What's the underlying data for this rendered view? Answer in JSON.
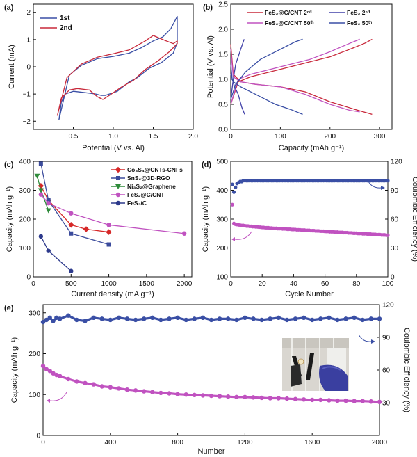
{
  "chart_data": [
    {
      "id": "a",
      "panel_label": "(a)",
      "type": "line",
      "xlabel": "Potential (V vs. Al)",
      "ylabel": "Current (mA)",
      "xlim": [
        0,
        2
      ],
      "ylim": [
        -2.3,
        2.3
      ],
      "xticks": [
        0.5,
        1.0,
        1.5,
        2.0
      ],
      "xticklabels": [
        "0.5",
        "1.0",
        "1.5",
        "2.0"
      ],
      "yticks": [
        -2,
        -1,
        0,
        1,
        2
      ],
      "yticklabels": [
        "−2",
        "−1",
        "0",
        "1",
        "2"
      ],
      "legend": "top-left",
      "series": [
        {
          "name": "1st",
          "color": "#3a4fa5",
          "x": [
            0.32,
            0.45,
            0.6,
            0.8,
            1.0,
            1.2,
            1.35,
            1.5,
            1.62,
            1.72,
            1.8,
            1.8,
            1.75,
            1.6,
            1.45,
            1.3,
            1.2,
            1.05,
            0.9,
            0.85,
            0.78,
            0.65,
            0.5,
            0.4,
            0.35,
            0.32
          ],
          "y": [
            -1.95,
            -0.3,
            0.05,
            0.3,
            0.38,
            0.5,
            0.7,
            0.95,
            1.1,
            1.4,
            1.85,
            0.9,
            0.5,
            0.15,
            -0.05,
            -0.4,
            -0.55,
            -0.9,
            -1.05,
            -1.05,
            -1.0,
            -0.95,
            -0.9,
            -1.0,
            -1.3,
            -1.95
          ]
        },
        {
          "name": "2nd",
          "color": "#c8283a",
          "x": [
            0.3,
            0.42,
            0.6,
            0.8,
            1.0,
            1.2,
            1.4,
            1.5,
            1.62,
            1.75,
            1.8,
            1.8,
            1.7,
            1.55,
            1.4,
            1.25,
            1.1,
            0.95,
            0.87,
            0.8,
            0.7,
            0.55,
            0.45,
            0.35,
            0.3
          ],
          "y": [
            -1.8,
            -0.4,
            0.1,
            0.35,
            0.48,
            0.62,
            0.95,
            1.15,
            1.0,
            0.85,
            0.95,
            0.85,
            0.55,
            0.2,
            -0.1,
            -0.5,
            -0.75,
            -1.05,
            -1.2,
            -1.1,
            -0.85,
            -0.8,
            -0.85,
            -1.15,
            -1.8
          ]
        }
      ]
    },
    {
      "id": "b",
      "panel_label": "(b)",
      "type": "line",
      "xlabel": "Capacity (mAh g⁻¹)",
      "ylabel": "Potential (V vs. Al)",
      "xlim": [
        0,
        325
      ],
      "ylim": [
        0,
        2.5
      ],
      "xticks": [
        0,
        100,
        200,
        300
      ],
      "xticklabels": [
        "0",
        "100",
        "200",
        "300"
      ],
      "yticks": [
        0,
        0.5,
        1.0,
        1.5,
        2.0,
        2.5
      ],
      "yticklabels": [
        "0.0",
        "0.5",
        "1.0",
        "1.5",
        "2.0",
        "2.5"
      ],
      "legend": "top",
      "series": [
        {
          "name": "FeS₂@C/CNT 2ⁿᵈ",
          "color": "#c8283a",
          "charge": {
            "x": [
              0,
              15,
              40,
              80,
              120,
              160,
              200,
              240,
              270,
              285
            ],
            "y": [
              0.5,
              0.95,
              1.05,
              1.15,
              1.25,
              1.35,
              1.45,
              1.6,
              1.72,
              1.8
            ]
          },
          "discharge": {
            "x": [
              0,
              5,
              20,
              50,
              100,
              150,
              200,
              250,
              285
            ],
            "y": [
              1.7,
              1.1,
              0.95,
              0.9,
              0.85,
              0.75,
              0.55,
              0.4,
              0.3
            ]
          }
        },
        {
          "name": "FeS₂@C/CNT 50ᵗʰ",
          "color": "#c052c0",
          "charge": {
            "x": [
              0,
              15,
              40,
              80,
              120,
              160,
              200,
              240,
              260
            ],
            "y": [
              0.5,
              1.0,
              1.1,
              1.2,
              1.3,
              1.4,
              1.55,
              1.72,
              1.8
            ]
          },
          "discharge": {
            "x": [
              0,
              5,
              20,
              50,
              100,
              150,
              200,
              240,
              260
            ],
            "y": [
              1.6,
              1.05,
              0.95,
              0.9,
              0.85,
              0.7,
              0.5,
              0.38,
              0.35
            ]
          }
        },
        {
          "name": "FeS₂ 2ⁿᵈ",
          "color": "#4040a8",
          "charge": {
            "x": [
              0,
              5,
              10,
              20,
              27
            ],
            "y": [
              0.6,
              1.0,
              1.3,
              1.6,
              1.8
            ]
          },
          "discharge": {
            "x": [
              0,
              3,
              8,
              15,
              22,
              28
            ],
            "y": [
              1.3,
              1.0,
              0.85,
              0.7,
              0.45,
              0.3
            ]
          }
        },
        {
          "name": "FeS₂ 50ᵗʰ",
          "color": "#3a4fa5",
          "charge": {
            "x": [
              0,
              10,
              30,
              60,
              100,
              130,
              145
            ],
            "y": [
              0.6,
              0.9,
              1.15,
              1.4,
              1.6,
              1.75,
              1.8
            ]
          },
          "discharge": {
            "x": [
              0,
              5,
              20,
              50,
              90,
              120,
              145
            ],
            "y": [
              1.1,
              0.95,
              0.85,
              0.7,
              0.5,
              0.4,
              0.3
            ]
          }
        }
      ]
    },
    {
      "id": "c",
      "panel_label": "(c)",
      "type": "line",
      "xlabel": "Current density (mA g⁻¹)",
      "ylabel": "Capacity (mAh g⁻¹)",
      "xlim": [
        0,
        2100
      ],
      "ylim": [
        0,
        400
      ],
      "xticks": [
        0,
        500,
        1000,
        1500,
        2000
      ],
      "xticklabels": [
        "0",
        "500",
        "1000",
        "1500",
        "2000"
      ],
      "yticks": [
        0,
        100,
        200,
        300,
        400
      ],
      "yticklabels": [
        "0",
        "100",
        "200",
        "300",
        "400"
      ],
      "legend": "top-right",
      "series": [
        {
          "name": "Co₃S₄@CNTs-CNFs",
          "color": "#d62828",
          "marker": "diamond",
          "x": [
            100,
            200,
            500,
            700,
            1000
          ],
          "y": [
            315,
            265,
            180,
            165,
            155
          ]
        },
        {
          "name": "SnS₂@3D-RGO",
          "color": "#3b4b9c",
          "marker": "square",
          "x": [
            100,
            200,
            500,
            1000
          ],
          "y": [
            392,
            265,
            150,
            112
          ]
        },
        {
          "name": "Ni₃S₂@Graphene",
          "color": "#2e8b3a",
          "marker": "triangle",
          "x": [
            50,
            100,
            200
          ],
          "y": [
            350,
            300,
            230
          ]
        },
        {
          "name": "FeS₂@C/CNT",
          "color": "#c052c0",
          "marker": "circle",
          "x": [
            100,
            200,
            500,
            1000,
            2000
          ],
          "y": [
            285,
            255,
            220,
            180,
            150
          ]
        },
        {
          "name": "FeS₂/C",
          "color": "#2d3a8c",
          "marker": "circle",
          "x": [
            100,
            200,
            500
          ],
          "y": [
            140,
            90,
            20
          ]
        }
      ]
    },
    {
      "id": "d",
      "panel_label": "(d)",
      "type": "scatter",
      "xlabel": "Cycle Number",
      "ylabel": "Capacity (mAh g⁻¹)",
      "y2label": "Coulombic Efficiency (%)",
      "xlim": [
        0,
        100
      ],
      "ylim": [
        100,
        500
      ],
      "y2lim": [
        0,
        120
      ],
      "xticks": [
        0,
        20,
        40,
        60,
        80,
        100
      ],
      "xticklabels": [
        "0",
        "20",
        "40",
        "60",
        "80",
        "100"
      ],
      "yticks": [
        100,
        200,
        300,
        400,
        500
      ],
      "yticklabels": [
        "100",
        "200",
        "300",
        "400",
        "500"
      ],
      "y2ticks": [
        0,
        30,
        60,
        90,
        120
      ],
      "y2ticklabels": [
        "0",
        "30",
        "60",
        "90",
        "120"
      ],
      "series": [
        {
          "name": "Coulombic efficiency",
          "color": "#3a4fa5",
          "axis": "y2",
          "x_start": 1,
          "x_step": 1,
          "values": [
            96,
            88,
            93,
            97,
            98,
            99,
            99,
            100,
            100,
            100,
            100,
            100,
            100,
            100,
            100,
            100,
            100,
            100,
            100,
            100,
            100,
            100,
            100,
            100,
            100,
            100,
            100,
            100,
            100,
            100,
            100,
            100,
            100,
            100,
            100,
            100,
            100,
            100,
            100,
            100,
            100,
            100,
            100,
            100,
            100,
            100,
            100,
            100,
            100,
            100,
            100,
            100,
            100,
            100,
            100,
            100,
            100,
            100,
            100,
            100,
            100,
            100,
            100,
            100,
            100,
            100,
            100,
            100,
            100,
            100,
            100,
            100,
            100,
            100,
            100,
            100,
            100,
            100,
            100,
            100,
            100,
            100,
            100,
            100,
            100,
            100,
            100,
            100,
            100,
            100,
            100,
            100,
            100,
            100,
            100,
            100,
            100,
            100,
            100,
            100
          ]
        },
        {
          "name": "Capacity",
          "color": "#c052c0",
          "axis": "y",
          "x_start": 1,
          "x_step": 1,
          "values": [
            350,
            285,
            282,
            281,
            280,
            279,
            278,
            278,
            277,
            276,
            276,
            275,
            275,
            274,
            274,
            273,
            273,
            272,
            272,
            271,
            271,
            270,
            270,
            270,
            269,
            269,
            268,
            268,
            268,
            267,
            267,
            267,
            266,
            266,
            266,
            265,
            265,
            265,
            264,
            264,
            264,
            263,
            263,
            263,
            262,
            262,
            262,
            261,
            261,
            261,
            260,
            260,
            260,
            259,
            259,
            259,
            258,
            258,
            258,
            257,
            257,
            257,
            256,
            256,
            256,
            255,
            255,
            255,
            254,
            254,
            254,
            253,
            253,
            253,
            252,
            252,
            252,
            251,
            251,
            251,
            250,
            250,
            250,
            249,
            249,
            249,
            248,
            248,
            248,
            247,
            247,
            247,
            246,
            246,
            246,
            245,
            245,
            245,
            244,
            244
          ]
        }
      ]
    },
    {
      "id": "e",
      "panel_label": "(e)",
      "type": "scatter",
      "xlabel": "Number",
      "ylabel": "Capacity (mAh g⁻¹)",
      "y2label": "Coulombic Efficiency (%)",
      "xlim": [
        0,
        2000
      ],
      "ylim": [
        0,
        320
      ],
      "y2lim": [
        0,
        120
      ],
      "xticks": [
        0,
        400,
        800,
        1200,
        1600,
        2000
      ],
      "xticklabels": [
        "0",
        "400",
        "800",
        "1200",
        "1600",
        "2000"
      ],
      "yticks": [
        0,
        100,
        200,
        300
      ],
      "yticklabels": [
        "0",
        "100",
        "200",
        "300"
      ],
      "y2ticks": [
        30,
        60,
        90,
        120
      ],
      "y2ticklabels": [
        "30",
        "60",
        "90",
        "120"
      ],
      "series": [
        {
          "name": "Coulombic efficiency",
          "color": "#3a4fa5",
          "axis": "y2",
          "x": [
            0,
            20,
            40,
            60,
            80,
            100,
            150,
            200,
            250,
            300,
            350,
            400,
            450,
            500,
            550,
            600,
            650,
            700,
            750,
            800,
            850,
            900,
            950,
            1000,
            1050,
            1100,
            1150,
            1200,
            1250,
            1300,
            1350,
            1400,
            1450,
            1500,
            1550,
            1600,
            1650,
            1700,
            1750,
            1800,
            1850,
            1900,
            1950,
            2000
          ],
          "y": [
            104,
            106,
            108,
            105,
            108,
            107,
            110,
            106,
            105,
            108,
            107,
            106,
            108,
            107,
            106,
            107,
            108,
            106,
            107,
            108,
            106,
            107,
            108,
            106,
            107,
            107,
            106,
            108,
            107,
            106,
            107,
            108,
            106,
            107,
            108,
            106,
            107,
            108,
            106,
            107,
            108,
            106,
            107,
            107
          ]
        },
        {
          "name": "Capacity",
          "color": "#c052c0",
          "axis": "y",
          "x": [
            0,
            20,
            40,
            60,
            80,
            100,
            150,
            200,
            250,
            300,
            350,
            400,
            450,
            500,
            550,
            600,
            650,
            700,
            750,
            800,
            850,
            900,
            950,
            1000,
            1050,
            1100,
            1150,
            1200,
            1250,
            1300,
            1350,
            1400,
            1450,
            1500,
            1550,
            1600,
            1650,
            1700,
            1750,
            1800,
            1850,
            1900,
            1950,
            2000
          ],
          "y": [
            170,
            162,
            158,
            152,
            148,
            145,
            138,
            132,
            128,
            125,
            120,
            118,
            115,
            112,
            110,
            108,
            106,
            104,
            103,
            101,
            100,
            99,
            98,
            97,
            96,
            95,
            94,
            94,
            93,
            92,
            91,
            91,
            90,
            89,
            88,
            87,
            87,
            86,
            85,
            85,
            84,
            84,
            83,
            82
          ]
        }
      ]
    }
  ],
  "labels": {
    "a": {
      "panel": "(a)",
      "xlabel": "Potential (V vs. Al)",
      "ylabel": "Current (mA)",
      "leg1": "1st",
      "leg2": "2nd"
    },
    "b": {
      "panel": "(b)",
      "xlabel": "Capacity (mAh g⁻¹)",
      "ylabel": "Potential (V vs. Al)",
      "leg1": "FeS₂@C/CNT 2ⁿᵈ",
      "leg2": "FeS₂@C/CNT 50ᵗʰ",
      "leg3": "FeS₂ 2ⁿᵈ",
      "leg4": "FeS₂ 50ᵗʰ"
    },
    "c": {
      "panel": "(c)",
      "xlabel": "Current density (mA g⁻¹)",
      "ylabel": "Capacity (mAh g⁻¹)",
      "leg1": "Co₃S₄@CNTs-CNFs",
      "leg2": "SnS₂@3D-RGO",
      "leg3": "Ni₃S₂@Graphene",
      "leg4": "FeS₂@C/CNT",
      "leg5": "FeS₂/C"
    },
    "d": {
      "panel": "(d)",
      "xlabel": "Cycle Number",
      "ylabel": "Capacity (mAh g⁻¹)",
      "y2label": "Coulombic Efficiency (%)"
    },
    "e": {
      "panel": "(e)",
      "xlabel": "Number",
      "ylabel": "Capacity (mAh g⁻¹)",
      "y2label": "Coulombic Efficiency (%)"
    }
  }
}
